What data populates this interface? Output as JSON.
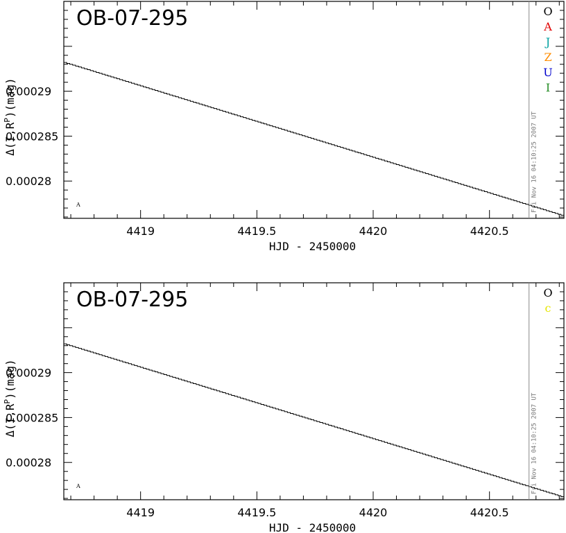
{
  "chart_data": [
    {
      "type": "line",
      "title": "OB-07-295",
      "xlabel": "HJD - 2450000",
      "ylabel": "Δ(I,R",
      "ylabel_sup": "P",
      "ylabel_tail": ")(mag)",
      "xlim": [
        4418.67,
        4420.82
      ],
      "ylim": [
        0.00027585,
        0.0003
      ],
      "xticks": [
        4419,
        4419.5,
        4420,
        4420.5
      ],
      "xtick_labels": [
        "4419",
        "4419.5",
        "4420",
        "4420.5"
      ],
      "yticks": [
        0.00028,
        0.000285,
        0.00029
      ],
      "ytick_labels": [
        "0.00028",
        "0.000285",
        "0.00029"
      ],
      "series": [
        {
          "x": [
            4418.67,
            4420.82
          ],
          "y": [
            0.0002932,
            0.0002761
          ]
        }
      ],
      "vline_x": 4420.67,
      "date_text": "Fri Nov 16 04:10:25 2007 UT",
      "corner_label": "A",
      "legend": [
        {
          "label": "O",
          "color": "#000000"
        },
        {
          "label": "A",
          "color": "#e00000"
        },
        {
          "label": "J",
          "color": "#00a0a0"
        },
        {
          "label": "Z",
          "color": "#ff8c00"
        },
        {
          "label": "U",
          "color": "#0000cc"
        },
        {
          "label": "I",
          "color": "#228b22"
        }
      ]
    },
    {
      "type": "line",
      "title": "OB-07-295",
      "xlabel": "HJD - 2450000",
      "ylabel": "Δ(I,R",
      "ylabel_sup": "P",
      "ylabel_tail": ")(mag)",
      "xlim": [
        4418.67,
        4420.82
      ],
      "ylim": [
        0.00027585,
        0.0003
      ],
      "xticks": [
        4419,
        4419.5,
        4420,
        4420.5
      ],
      "xtick_labels": [
        "4419",
        "4419.5",
        "4420",
        "4420.5"
      ],
      "yticks": [
        0.00028,
        0.000285,
        0.00029
      ],
      "ytick_labels": [
        "0.00028",
        "0.000285",
        "0.00029"
      ],
      "series": [
        {
          "x": [
            4418.67,
            4420.82
          ],
          "y": [
            0.0002932,
            0.0002761
          ]
        }
      ],
      "vline_x": 4420.67,
      "date_text": "Fri Nov 16 04:10:25 2007 UT",
      "corner_label": "A",
      "legend": [
        {
          "label": "O",
          "color": "#000000"
        },
        {
          "label": "c",
          "color": "#e6e600"
        }
      ]
    }
  ]
}
